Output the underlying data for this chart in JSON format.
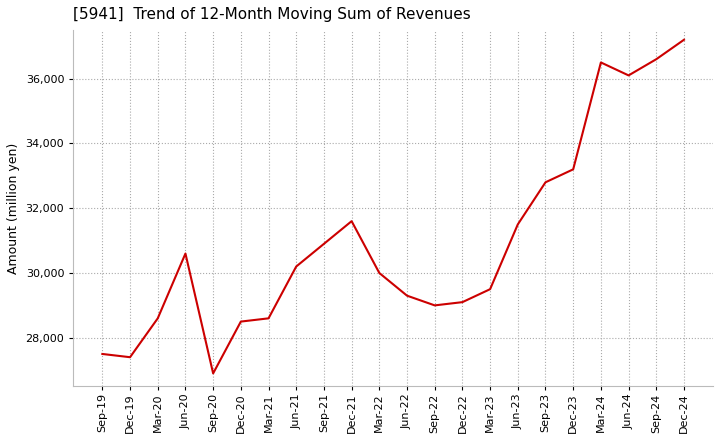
{
  "title": "[5941]  Trend of 12-Month Moving Sum of Revenues",
  "ylabel": "Amount (million yen)",
  "background_color": "#ffffff",
  "grid_color": "#aaaaaa",
  "line_color": "#cc0000",
  "x_labels": [
    "Sep-19",
    "Dec-19",
    "Mar-20",
    "Jun-20",
    "Sep-20",
    "Dec-20",
    "Mar-21",
    "Jun-21",
    "Sep-21",
    "Dec-21",
    "Mar-22",
    "Jun-22",
    "Sep-22",
    "Dec-22",
    "Mar-23",
    "Jun-23",
    "Sep-23",
    "Dec-23",
    "Mar-24",
    "Jun-24",
    "Sep-24",
    "Dec-24"
  ],
  "y_values": [
    27500,
    27400,
    28600,
    30600,
    26900,
    28500,
    28600,
    30200,
    30900,
    31600,
    30000,
    29300,
    29000,
    29100,
    29500,
    31500,
    32800,
    33200,
    36500,
    36100,
    36600,
    37200
  ],
  "ylim": [
    26500,
    37500
  ],
  "yticks": [
    28000,
    30000,
    32000,
    34000,
    36000
  ],
  "title_fontsize": 11,
  "label_fontsize": 9,
  "tick_fontsize": 8,
  "figsize": [
    7.2,
    4.4
  ],
  "dpi": 100
}
